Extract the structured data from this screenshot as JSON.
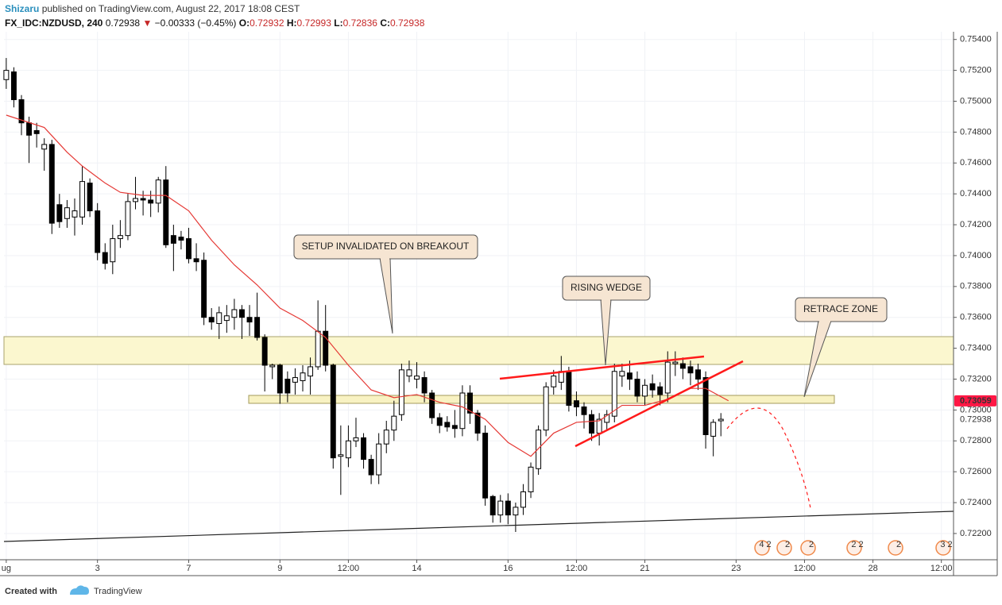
{
  "header": {
    "author": "Shizaru",
    "published": "published on TradingView.com, August 22, 2017 18:08 CEST"
  },
  "chart_data": {
    "type": "candlestick",
    "symbol": "FX_IDC:NZDUSD, 240",
    "last": "0.72938",
    "change_arrow": "▼",
    "change": "−0.00333 (−0.45%)",
    "ohlc_legend": [
      {
        "label": "O:",
        "value": "0.72932"
      },
      {
        "label": "H:",
        "value": "0.72993"
      },
      {
        "label": "L:",
        "value": "0.72836"
      },
      {
        "label": "C:",
        "value": "0.72938"
      }
    ],
    "x": [
      0,
      1,
      2,
      3,
      4,
      5,
      6,
      7,
      8,
      9,
      10,
      11,
      12,
      13,
      14,
      15,
      16,
      17,
      18,
      19,
      20,
      21,
      22,
      23,
      24,
      25,
      26,
      27,
      28,
      29,
      30,
      31,
      32,
      33,
      34,
      35,
      36,
      37,
      38,
      39,
      40,
      41,
      42,
      43,
      44,
      45,
      46,
      47,
      48,
      49,
      50,
      51,
      52,
      53,
      54,
      55,
      56,
      57,
      58,
      59,
      60,
      61,
      62,
      63,
      64,
      65,
      66,
      67,
      68,
      69,
      70,
      71,
      72,
      73,
      74,
      75,
      76,
      77,
      78,
      79,
      80,
      81,
      82,
      83,
      84,
      85,
      86,
      87,
      88,
      89,
      90,
      91,
      92,
      93,
      94
    ],
    "open": [
      0.7514,
      0.7519,
      0.7501,
      0.7486,
      0.7481,
      0.7469,
      0.7472,
      0.7433,
      0.7424,
      0.7425,
      0.7425,
      0.7447,
      0.7429,
      0.7402,
      0.7396,
      0.7411,
      0.7413,
      0.7435,
      0.7437,
      0.7436,
      0.7434,
      0.7449,
      0.7413,
      0.7412,
      0.7411,
      0.7398,
      0.7397,
      0.736,
      0.7356,
      0.7358,
      0.736,
      0.7365,
      0.736,
      0.736,
      0.7347,
      0.7328,
      0.7329,
      0.732,
      0.7318,
      0.7319,
      0.7322,
      0.7328,
      0.7351,
      0.7329,
      0.727,
      0.7269,
      0.728,
      0.7282,
      0.7268,
      0.7258,
      0.7278,
      0.7287,
      0.7297,
      0.7322,
      0.732,
      0.7321,
      0.7311,
      0.7295,
      0.7292,
      0.729,
      0.7288,
      0.7311,
      0.7298,
      0.7285,
      0.7244,
      0.7232,
      0.7241,
      0.7232,
      0.7237,
      0.7247,
      0.7262,
      0.7287,
      0.7315,
      0.7318,
      0.7325,
      0.7306,
      0.7302,
      0.7297,
      0.7285,
      0.7292,
      0.7296,
      0.7322,
      0.7324,
      0.732,
      0.7309,
      0.7317,
      0.7315,
      0.7311,
      0.733,
      0.733,
      0.7328,
      0.7326,
      0.7321,
      0.7283,
      0.7293
    ],
    "high": [
      0.7528,
      0.7522,
      0.7504,
      0.749,
      0.7486,
      0.7476,
      0.7475,
      0.744,
      0.7436,
      0.7437,
      0.7458,
      0.745,
      0.7434,
      0.7408,
      0.742,
      0.7423,
      0.744,
      0.7451,
      0.7442,
      0.7442,
      0.7451,
      0.7458,
      0.742,
      0.7416,
      0.7418,
      0.7408,
      0.7402,
      0.7366,
      0.7367,
      0.7368,
      0.7372,
      0.7368,
      0.7368,
      0.7376,
      0.7349,
      0.733,
      0.733,
      0.7325,
      0.7327,
      0.7329,
      0.7334,
      0.7371,
      0.7368,
      0.733,
      0.729,
      0.729,
      0.7295,
      0.7285,
      0.7271,
      0.7285,
      0.7293,
      0.7306,
      0.733,
      0.7332,
      0.7331,
      0.7325,
      0.7313,
      0.7298,
      0.7296,
      0.73,
      0.7316,
      0.7316,
      0.73,
      0.729,
      0.7245,
      0.7245,
      0.7246,
      0.724,
      0.7252,
      0.7266,
      0.729,
      0.7318,
      0.7326,
      0.7335,
      0.7328,
      0.7312,
      0.7305,
      0.73,
      0.7298,
      0.73,
      0.733,
      0.733,
      0.7332,
      0.7325,
      0.732,
      0.7323,
      0.7318,
      0.7338,
      0.7338,
      0.7334,
      0.7332,
      0.733,
      0.7325,
      0.7294,
      0.7298
    ],
    "low": [
      0.7508,
      0.7496,
      0.7478,
      0.746,
      0.747,
      0.7455,
      0.7414,
      0.7418,
      0.7418,
      0.7413,
      0.742,
      0.7425,
      0.7397,
      0.7391,
      0.7388,
      0.7405,
      0.741,
      0.743,
      0.7426,
      0.7425,
      0.7428,
      0.7405,
      0.739,
      0.7404,
      0.7395,
      0.739,
      0.7355,
      0.7352,
      0.7346,
      0.735,
      0.7352,
      0.7346,
      0.7348,
      0.7345,
      0.7312,
      0.732,
      0.7304,
      0.7305,
      0.731,
      0.7312,
      0.731,
      0.7326,
      0.7325,
      0.7262,
      0.7245,
      0.7263,
      0.7276,
      0.7262,
      0.7252,
      0.7252,
      0.7272,
      0.728,
      0.7293,
      0.7318,
      0.7314,
      0.7305,
      0.7291,
      0.7285,
      0.7286,
      0.7282,
      0.7283,
      0.7291,
      0.728,
      0.7238,
      0.7227,
      0.7227,
      0.7226,
      0.7221,
      0.7232,
      0.7243,
      0.7258,
      0.7283,
      0.731,
      0.7313,
      0.7299,
      0.7296,
      0.7288,
      0.728,
      0.7277,
      0.7287,
      0.7292,
      0.7315,
      0.7313,
      0.7305,
      0.7303,
      0.7308,
      0.7303,
      0.7305,
      0.7322,
      0.732,
      0.7316,
      0.7313,
      0.7275,
      0.727,
      0.7283
    ],
    "close": [
      0.752,
      0.7501,
      0.7486,
      0.7478,
      0.7479,
      0.7472,
      0.7421,
      0.7422,
      0.7431,
      0.7429,
      0.7448,
      0.7429,
      0.7402,
      0.7395,
      0.7411,
      0.7413,
      0.7435,
      0.7437,
      0.7436,
      0.7434,
      0.7449,
      0.7407,
      0.7408,
      0.741,
      0.7398,
      0.7396,
      0.736,
      0.7357,
      0.7363,
      0.7361,
      0.7365,
      0.736,
      0.7357,
      0.7347,
      0.7329,
      0.7329,
      0.7311,
      0.7311,
      0.7321,
      0.7324,
      0.7328,
      0.7351,
      0.7329,
      0.7269,
      0.7271,
      0.728,
      0.7282,
      0.7268,
      0.7258,
      0.7278,
      0.7287,
      0.7296,
      0.7326,
      0.7326,
      0.7322,
      0.7311,
      0.7295,
      0.729,
      0.7289,
      0.7288,
      0.7311,
      0.7298,
      0.7285,
      0.7243,
      0.7232,
      0.7241,
      0.7232,
      0.7237,
      0.7247,
      0.7263,
      0.7287,
      0.7315,
      0.7322,
      0.7325,
      0.7303,
      0.7302,
      0.7297,
      0.7285,
      0.7294,
      0.7297,
      0.7325,
      0.7325,
      0.732,
      0.7309,
      0.7316,
      0.7313,
      0.731,
      0.7331,
      0.7331,
      0.7327,
      0.7324,
      0.732,
      0.7284,
      0.7292,
      0.7294
    ],
    "up_color": "#ffffff",
    "down_color": "#000000",
    "ma": {
      "color": "#e53935",
      "x": [
        0,
        5,
        8,
        10,
        13,
        15,
        18,
        21,
        24,
        27,
        30,
        33,
        36,
        39,
        42,
        45,
        48,
        51,
        54,
        57,
        60,
        63,
        66,
        69,
        72,
        75,
        78,
        81,
        84,
        87,
        90,
        92,
        95
      ],
      "values": [
        0.7491,
        0.7483,
        0.7467,
        0.7458,
        0.7447,
        0.7441,
        0.7439,
        0.7439,
        0.7429,
        0.741,
        0.7394,
        0.7381,
        0.7366,
        0.7358,
        0.7347,
        0.7329,
        0.7313,
        0.7308,
        0.731,
        0.7305,
        0.7302,
        0.7294,
        0.7279,
        0.727,
        0.7285,
        0.7292,
        0.7293,
        0.7303,
        0.7303,
        0.7307,
        0.7314,
        0.7314,
        0.7306
      ]
    },
    "xlim": [
      -0.3,
      124.6
    ],
    "xticks": [
      {
        "value": 0,
        "label": "ug"
      },
      {
        "value": 12,
        "label": "3"
      },
      {
        "value": 24,
        "label": "7"
      },
      {
        "value": 36,
        "label": "9"
      },
      {
        "value": 45,
        "label": "12:00"
      },
      {
        "value": 54,
        "label": "14"
      },
      {
        "value": 66,
        "label": "16"
      },
      {
        "value": 75,
        "label": "12:00"
      },
      {
        "value": 84,
        "label": "21"
      },
      {
        "value": 96,
        "label": "23"
      },
      {
        "value": 105,
        "label": "12:00"
      },
      {
        "value": 114,
        "label": "28"
      },
      {
        "value": 123,
        "label": "12:00"
      }
    ],
    "ylim": [
      0.7203,
      0.7545
    ],
    "yticks": [
      {
        "value": 0.722,
        "label": "0.72200"
      },
      {
        "value": 0.724,
        "label": "0.72400"
      },
      {
        "value": 0.726,
        "label": "0.72600"
      },
      {
        "value": 0.728,
        "label": "0.72800"
      },
      {
        "value": 0.73,
        "label": "0.73000"
      },
      {
        "value": 0.732,
        "label": "0.73200"
      },
      {
        "value": 0.734,
        "label": "0.73400"
      },
      {
        "value": 0.736,
        "label": "0.73600"
      },
      {
        "value": 0.738,
        "label": "0.73800"
      },
      {
        "value": 0.74,
        "label": "0.74000"
      },
      {
        "value": 0.742,
        "label": "0.74200"
      },
      {
        "value": 0.744,
        "label": "0.74400"
      },
      {
        "value": 0.746,
        "label": "0.74600"
      },
      {
        "value": 0.748,
        "label": "0.74800"
      },
      {
        "value": 0.75,
        "label": "0.75000"
      },
      {
        "value": 0.752,
        "label": "0.75200"
      },
      {
        "value": 0.754,
        "label": "0.75400"
      }
    ],
    "price_tags": [
      {
        "value": 0.73059,
        "label": "0.73059",
        "color": "#ff1744"
      },
      {
        "value": 0.72938,
        "label": "0.72938",
        "color": "#000000"
      }
    ],
    "grid": true,
    "annotations": [
      "SETUP INVALIDATED ON BREAKOUT",
      "RISING WEDGE",
      "RETRACE ZONE"
    ],
    "events": [
      "4 2",
      "2",
      "2",
      "2 2",
      "2",
      "3 2"
    ]
  },
  "footer": {
    "created": "Created with",
    "brand": "TradingView"
  }
}
